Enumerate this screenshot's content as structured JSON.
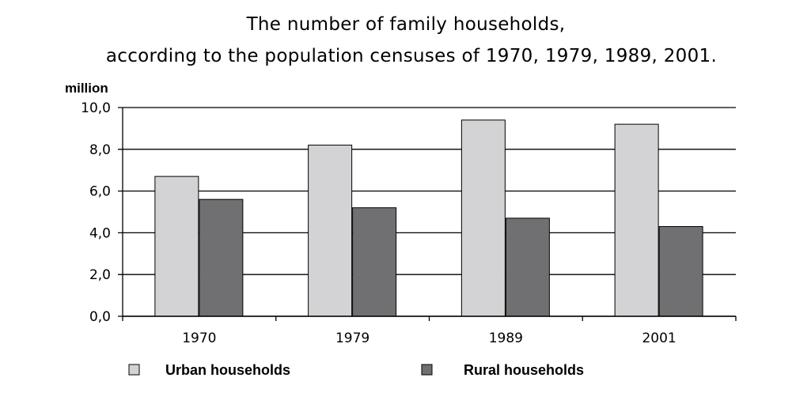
{
  "chart_data": {
    "type": "bar",
    "title": "The number of family households,",
    "subtitle": "according to the population censuses of 1970, 1979, 1989, 2001.",
    "ylabel": "million",
    "xlabel": "",
    "categories": [
      "1970",
      "1979",
      "1989",
      "2001"
    ],
    "ylim": [
      0,
      10
    ],
    "yticks": [
      "0,0",
      "2,0",
      "4,0",
      "6,0",
      "8,0",
      "10,0"
    ],
    "grid": true,
    "legend_position": "bottom",
    "series": [
      {
        "name": "Urban households",
        "values": [
          6.7,
          8.2,
          9.4,
          9.2
        ],
        "color": "#d3d3d5"
      },
      {
        "name": "Rural households",
        "values": [
          5.6,
          5.2,
          4.7,
          4.3
        ],
        "color": "#707072"
      }
    ]
  }
}
